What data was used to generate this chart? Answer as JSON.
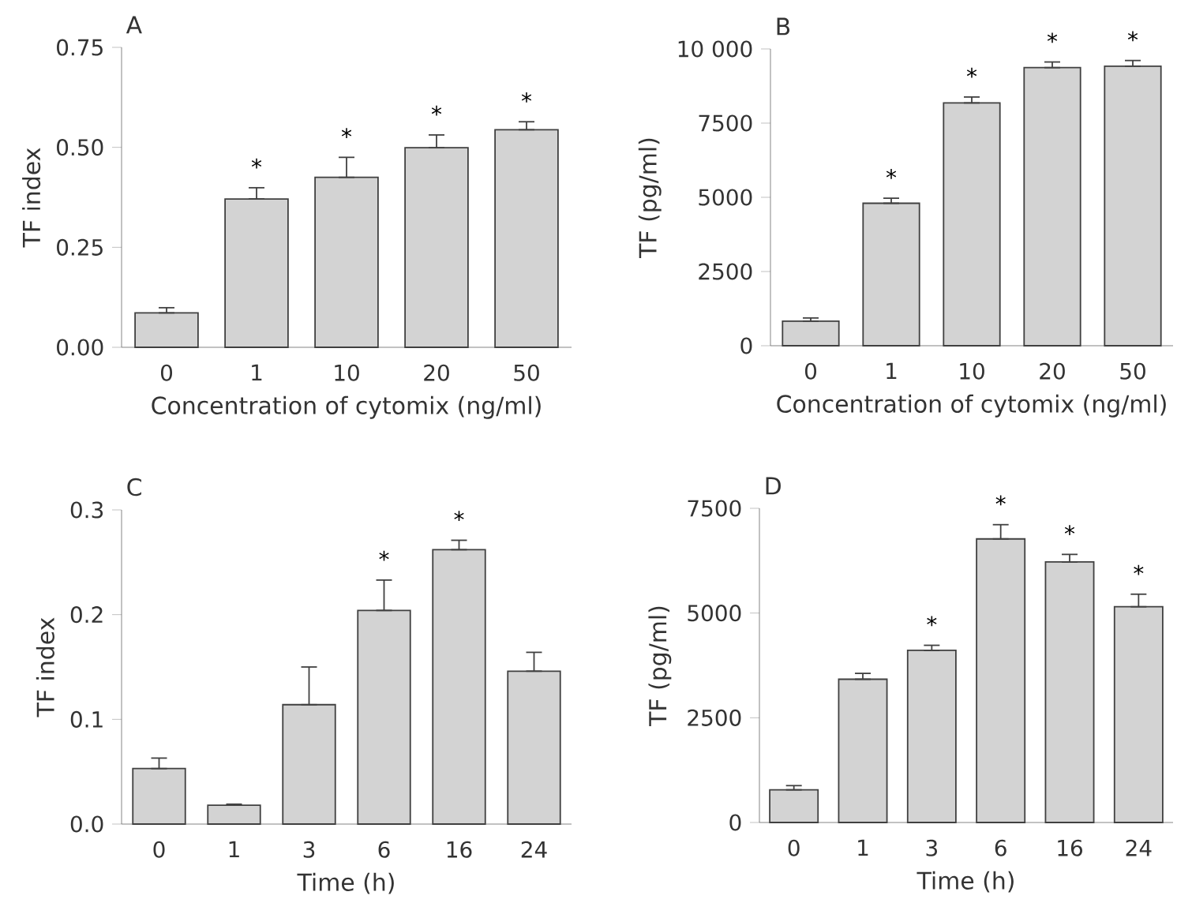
{
  "chart_data": [
    {
      "type": "bar",
      "title": "A",
      "xlabel": "Concentration of cytomix (ng/ml)",
      "ylabel": "TF index",
      "categories": [
        "0",
        "1",
        "10",
        "20",
        "50"
      ],
      "values": [
        0.086,
        0.371,
        0.425,
        0.499,
        0.544
      ],
      "errors": [
        [
          0.086,
          0.099
        ],
        [
          0.371,
          0.399
        ],
        [
          0.425,
          0.475
        ],
        [
          0.499,
          0.531
        ],
        [
          0.544,
          0.564
        ]
      ],
      "color": "#d3d3d3",
      "ylim": [
        0,
        0.75
      ],
      "yticks": [
        {
          "value": 0,
          "label": "0.00"
        },
        0.25,
        {
          "value": 0.5,
          "label": "0.50"
        },
        0.75
      ],
      "annotations": [
        {
          "text": "*",
          "x": "1",
          "y": 0.399
        },
        {
          "text": "*",
          "x": "10",
          "y": 0.475
        },
        {
          "text": "*",
          "x": "20",
          "y": 0.531
        },
        {
          "text": "*",
          "x": "50",
          "y": 0.564
        }
      ]
    },
    {
      "type": "bar",
      "title": "B",
      "xlabel": "Concentration of cytomix (ng/ml)",
      "ylabel": "TF (pg/ml)",
      "categories": [
        "0",
        "1",
        "10",
        "20",
        "50"
      ],
      "values": [
        830,
        4800,
        8180,
        9370,
        9420
      ],
      "errors": [
        [
          830,
          935
        ],
        [
          4800,
          4970
        ],
        [
          8180,
          8380
        ],
        [
          9370,
          9560
        ],
        [
          9420,
          9610
        ]
      ],
      "color": "#d3d3d3",
      "ylim": [
        0,
        10000
      ],
      "yticks": [
        0,
        2500,
        5000,
        7500,
        {
          "value": 10000,
          "label": "10 000"
        }
      ],
      "annotations": [
        {
          "text": "*",
          "x": "1",
          "y": 4970
        },
        {
          "text": "*",
          "x": "10",
          "y": 8380
        },
        {
          "text": "*",
          "x": "20",
          "y": 9560
        },
        {
          "text": "*",
          "x": "50",
          "y": 9610
        }
      ]
    },
    {
      "type": "bar",
      "title": "C",
      "xlabel": "Time (h)",
      "ylabel": "TF index",
      "categories": [
        "0",
        "1",
        "3",
        "6",
        "16",
        "24"
      ],
      "values": [
        0.053,
        0.018,
        0.114,
        0.204,
        0.262,
        0.146
      ],
      "errors": [
        [
          0.053,
          0.063
        ],
        [
          0.018,
          0.019
        ],
        [
          0.114,
          0.15
        ],
        [
          0.204,
          0.233
        ],
        [
          0.262,
          0.271
        ],
        [
          0.146,
          0.164
        ]
      ],
      "color": "#d3d3d3",
      "ylim": [
        0,
        0.3
      ],
      "yticks": [
        {
          "value": 0,
          "label": "0.0"
        },
        0.1,
        0.2,
        0.3
      ],
      "annotations": [
        {
          "text": "*",
          "x": "6",
          "y": 0.233
        },
        {
          "text": "*",
          "x": "16",
          "y": 0.271
        }
      ]
    },
    {
      "type": "bar",
      "title": "D",
      "xlabel": "Time (h)",
      "ylabel": "TF (pg/ml)",
      "categories": [
        "0",
        "1",
        "3",
        "6",
        "16",
        "24"
      ],
      "values": [
        780,
        3420,
        4110,
        6770,
        6220,
        5150
      ],
      "errors": [
        [
          780,
          880
        ],
        [
          3420,
          3560
        ],
        [
          4110,
          4230
        ],
        [
          6770,
          7110
        ],
        [
          6220,
          6400
        ],
        [
          5150,
          5450
        ]
      ],
      "color": "#d3d3d3",
      "ylim": [
        0,
        7500
      ],
      "yticks": [
        0,
        2500,
        5000,
        7500
      ],
      "annotations": [
        {
          "text": "*",
          "x": "3",
          "y": 4230
        },
        {
          "text": "*",
          "x": "6",
          "y": 7110
        },
        {
          "text": "*",
          "x": "16",
          "y": 6400
        },
        {
          "text": "*",
          "x": "24",
          "y": 5450
        }
      ]
    }
  ]
}
